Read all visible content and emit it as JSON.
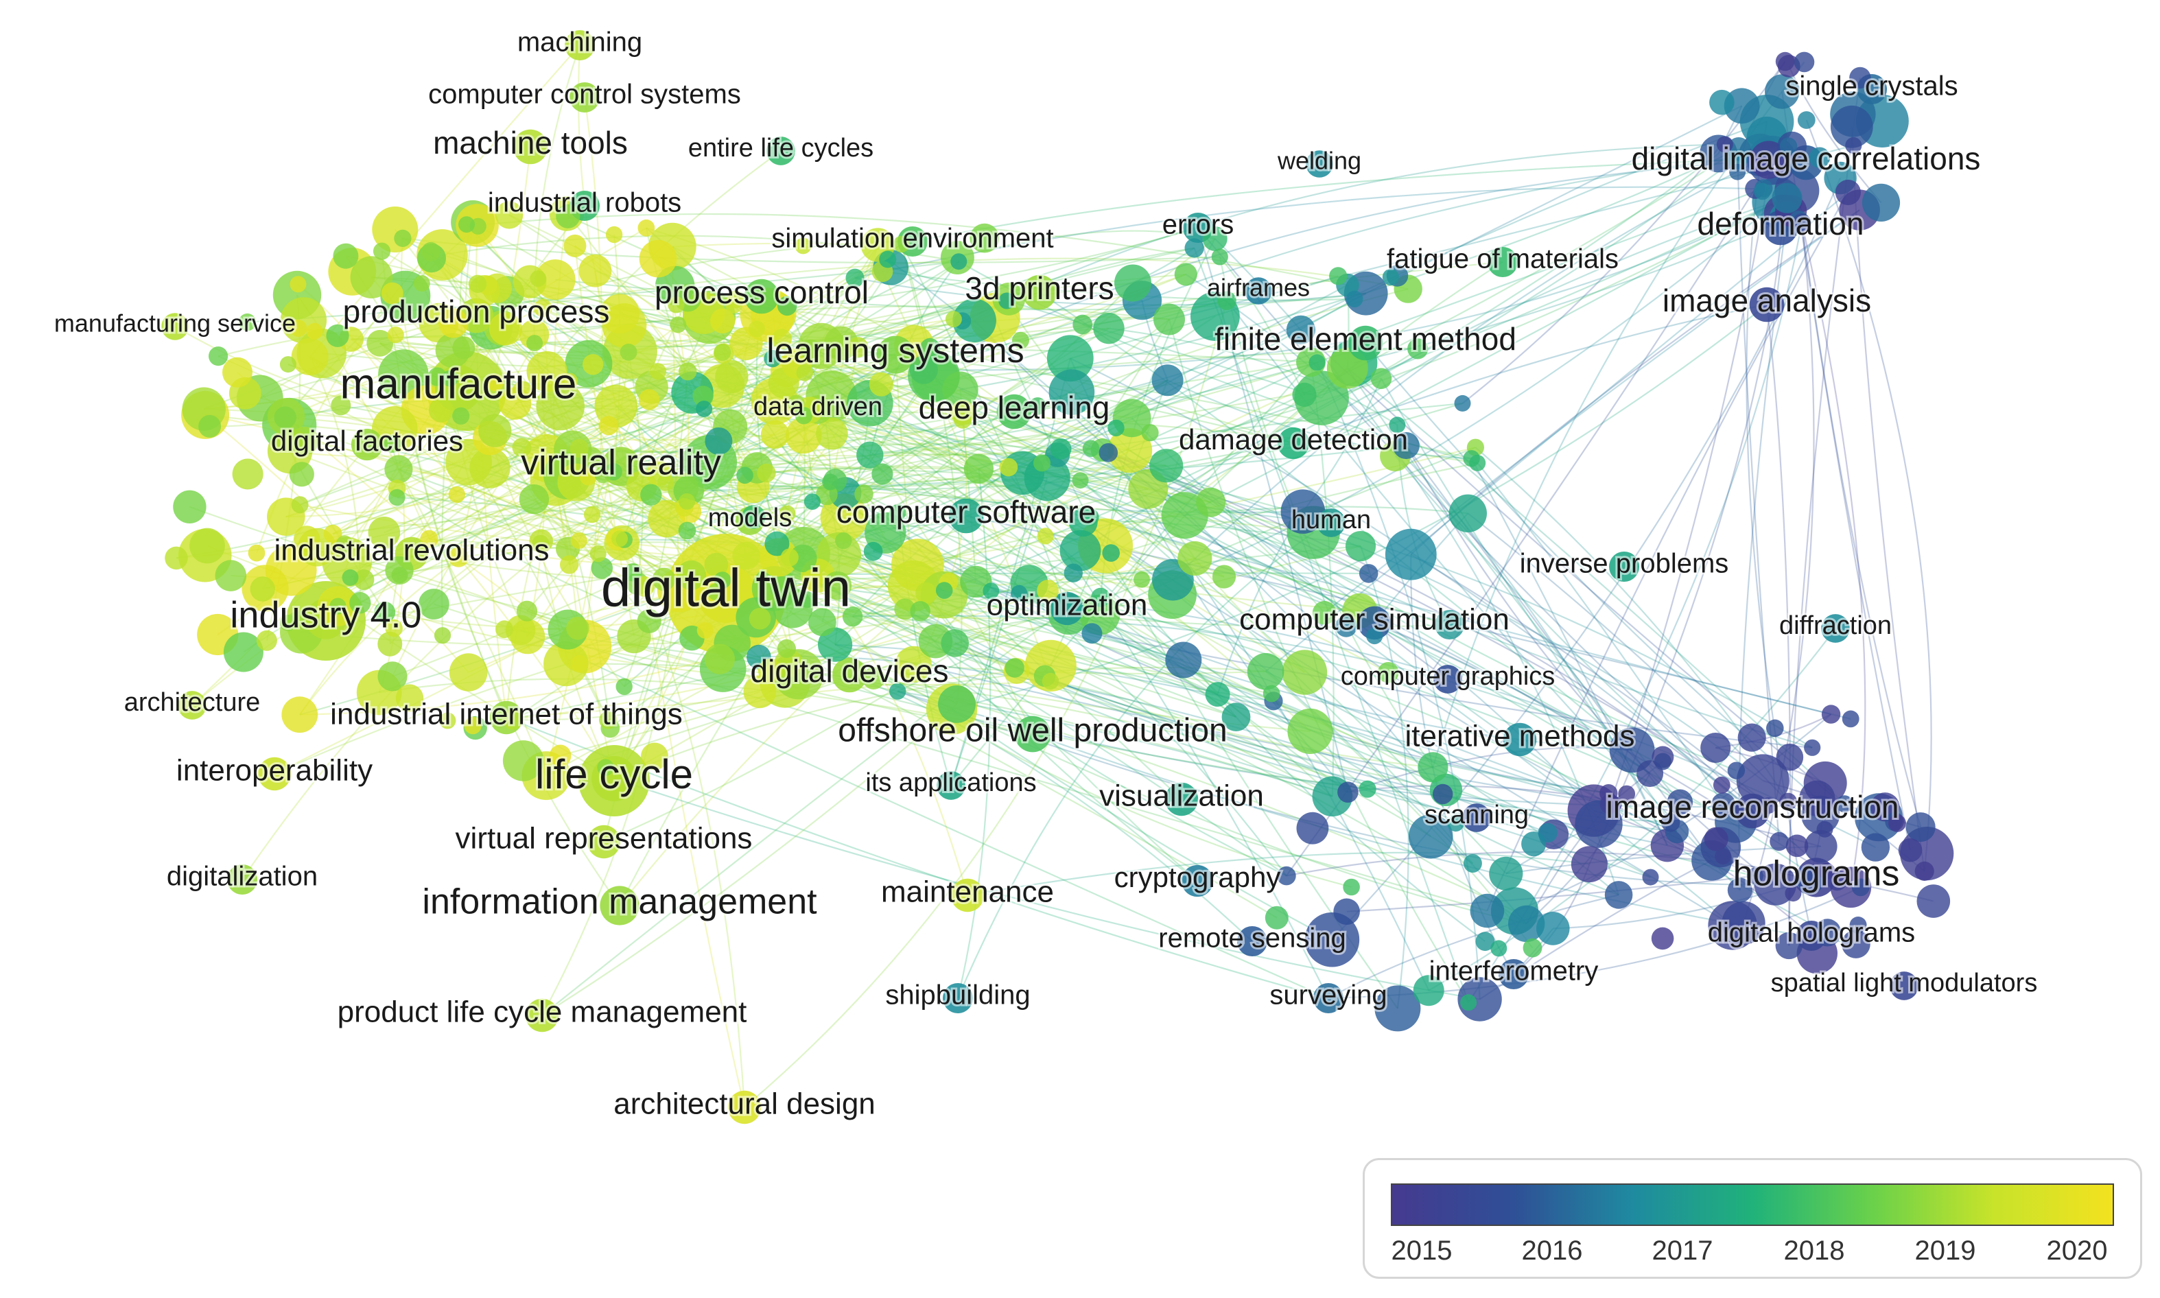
{
  "legend": {
    "years": [
      "2015",
      "2016",
      "2017",
      "2018",
      "2019",
      "2020"
    ],
    "colors": [
      "#453a8f",
      "#2f4f96",
      "#1f8aa0",
      "#20b27a",
      "#6ad14a",
      "#c7e32a",
      "#f3e21f"
    ]
  },
  "labels": [
    {
      "id": "machining",
      "text": "machining"
    },
    {
      "id": "computer-control-systems",
      "text": "computer control systems"
    },
    {
      "id": "machine-tools",
      "text": "machine tools"
    },
    {
      "id": "entire-life-cycles",
      "text": "entire life cycles"
    },
    {
      "id": "industrial-robots",
      "text": "industrial robots"
    },
    {
      "id": "simulation-environment",
      "text": "simulation environment"
    },
    {
      "id": "process-control",
      "text": "process control"
    },
    {
      "id": "3d-printers",
      "text": "3d printers"
    },
    {
      "id": "manufacturing-service",
      "text": "manufacturing service"
    },
    {
      "id": "production-process",
      "text": "production process"
    },
    {
      "id": "manufacture",
      "text": "manufacture"
    },
    {
      "id": "learning-systems",
      "text": "learning systems"
    },
    {
      "id": "data-driven",
      "text": "data driven"
    },
    {
      "id": "deep-learning",
      "text": "deep learning"
    },
    {
      "id": "digital-factories",
      "text": "digital factories"
    },
    {
      "id": "virtual-reality",
      "text": "virtual reality"
    },
    {
      "id": "models",
      "text": "models"
    },
    {
      "id": "computer-software",
      "text": "computer software"
    },
    {
      "id": "industrial-revolutions",
      "text": "industrial revolutions"
    },
    {
      "id": "digital-twin",
      "text": "digital twin"
    },
    {
      "id": "industry-4",
      "text": "industry 4.0"
    },
    {
      "id": "optimization",
      "text": "optimization"
    },
    {
      "id": "digital-devices",
      "text": "digital devices"
    },
    {
      "id": "architecture",
      "text": "architecture"
    },
    {
      "id": "industrial-iot",
      "text": "industrial internet of things"
    },
    {
      "id": "offshore-oil",
      "text": "offshore oil well production"
    },
    {
      "id": "interoperability",
      "text": "interoperability"
    },
    {
      "id": "life-cycle",
      "text": "life cycle"
    },
    {
      "id": "its-applications",
      "text": "its applications"
    },
    {
      "id": "visualization",
      "text": "visualization"
    },
    {
      "id": "virtual-representations",
      "text": "virtual representations"
    },
    {
      "id": "digitalization",
      "text": "digitalization"
    },
    {
      "id": "cryptography",
      "text": "cryptography"
    },
    {
      "id": "information-management",
      "text": "information management"
    },
    {
      "id": "maintenance",
      "text": "maintenance"
    },
    {
      "id": "remote-sensing",
      "text": "remote sensing"
    },
    {
      "id": "product-lcm",
      "text": "product life cycle management"
    },
    {
      "id": "shipbuilding",
      "text": "shipbuilding"
    },
    {
      "id": "architectural-design",
      "text": "architectural design"
    },
    {
      "id": "welding",
      "text": "welding"
    },
    {
      "id": "errors",
      "text": "errors"
    },
    {
      "id": "fatigue",
      "text": "fatigue of materials"
    },
    {
      "id": "airframes",
      "text": "airframes"
    },
    {
      "id": "finite-element",
      "text": "finite element method"
    },
    {
      "id": "damage-detection",
      "text": "damage detection"
    },
    {
      "id": "human",
      "text": "human"
    },
    {
      "id": "inverse-problems",
      "text": "inverse problems"
    },
    {
      "id": "computer-simulation",
      "text": "computer simulation"
    },
    {
      "id": "computer-graphics",
      "text": "computer graphics"
    },
    {
      "id": "iterative-methods",
      "text": "iterative methods"
    },
    {
      "id": "scanning",
      "text": "scanning"
    },
    {
      "id": "interferometry",
      "text": "interferometry"
    },
    {
      "id": "surveying",
      "text": "surveying"
    },
    {
      "id": "single-crystals",
      "text": "single crystals"
    },
    {
      "id": "digital-image-correlations",
      "text": "digital image correlations"
    },
    {
      "id": "deformation",
      "text": "deformation"
    },
    {
      "id": "image-analysis",
      "text": "image analysis"
    },
    {
      "id": "diffraction",
      "text": "diffraction"
    },
    {
      "id": "image-reconstruction",
      "text": "image reconstruction"
    },
    {
      "id": "holograms",
      "text": "holograms"
    },
    {
      "id": "digital-holograms",
      "text": "digital holograms"
    },
    {
      "id": "spatial-light-modulators",
      "text": "spatial light modulators"
    }
  ]
}
